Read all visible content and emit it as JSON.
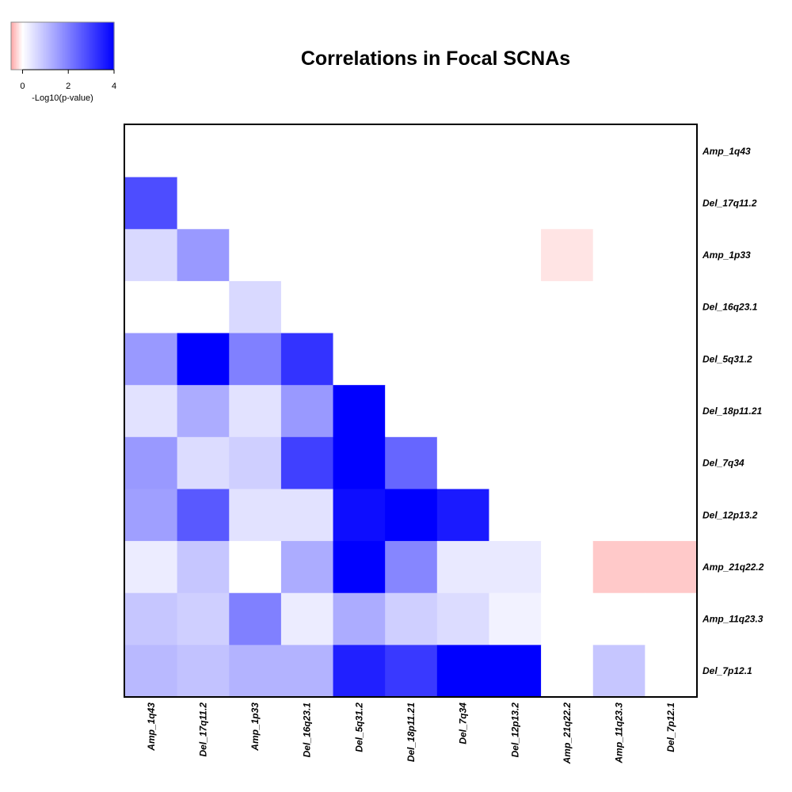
{
  "chart_data": {
    "type": "heatmap",
    "title": "Correlations in Focal SCNAs",
    "rows": [
      "Amp_1q43",
      "Del_17q11.2",
      "Amp_1p33",
      "Del_16q23.1",
      "Del_5q31.2",
      "Del_18p11.21",
      "Del_7q34",
      "Del_12p13.2",
      "Amp_21q22.2",
      "Amp_11q23.3",
      "Del_7p12.1"
    ],
    "columns": [
      "Amp_1q43",
      "Del_17q11.2",
      "Amp_1p33",
      "Del_16q23.1",
      "Del_5q31.2",
      "Del_18p11.21",
      "Del_7q34",
      "Del_12p13.2",
      "Amp_21q22.2",
      "Amp_11q23.3",
      "Del_7p12.1"
    ],
    "values": [
      [
        0,
        0,
        0,
        0,
        0,
        0,
        0,
        0,
        0,
        0,
        0
      ],
      [
        2.8,
        0,
        0,
        0,
        0,
        0,
        0,
        0,
        0,
        0,
        0
      ],
      [
        0.6,
        1.6,
        0,
        0,
        0,
        0,
        0,
        0,
        -0.15,
        0,
        0
      ],
      [
        0,
        0,
        0.6,
        0,
        0,
        0,
        0,
        0,
        0,
        0,
        0
      ],
      [
        1.6,
        4.0,
        2.0,
        3.2,
        0,
        0,
        0,
        0,
        0,
        0,
        0
      ],
      [
        0.45,
        1.3,
        0.45,
        1.6,
        4.0,
        0,
        0,
        0,
        0,
        0,
        0
      ],
      [
        1.6,
        0.55,
        0.75,
        3.0,
        4.0,
        2.4,
        0,
        0,
        0,
        0,
        0
      ],
      [
        1.5,
        2.6,
        0.45,
        0.45,
        3.8,
        4.0,
        3.6,
        0,
        0,
        0,
        0
      ],
      [
        0.3,
        0.9,
        0,
        1.3,
        4.0,
        1.9,
        0.35,
        0.35,
        0,
        -0.3,
        -0.3
      ],
      [
        0.9,
        0.75,
        2.0,
        0.3,
        1.3,
        0.75,
        0.55,
        0.2,
        0,
        0,
        0
      ],
      [
        1.1,
        0.95,
        1.2,
        1.2,
        3.5,
        3.1,
        4.0,
        4.0,
        0,
        0.9,
        0
      ]
    ],
    "colorscale": {
      "min": -0.5,
      "max": 4,
      "ticks": [
        0,
        2,
        4
      ],
      "low_color": "#ff0000",
      "mid_color": "#ffffff",
      "high_color": "#0000ff",
      "label": "-Log10(p-value)"
    },
    "row_label_side": "right",
    "column_label_side": "bottom",
    "legend_position": "top-left"
  }
}
